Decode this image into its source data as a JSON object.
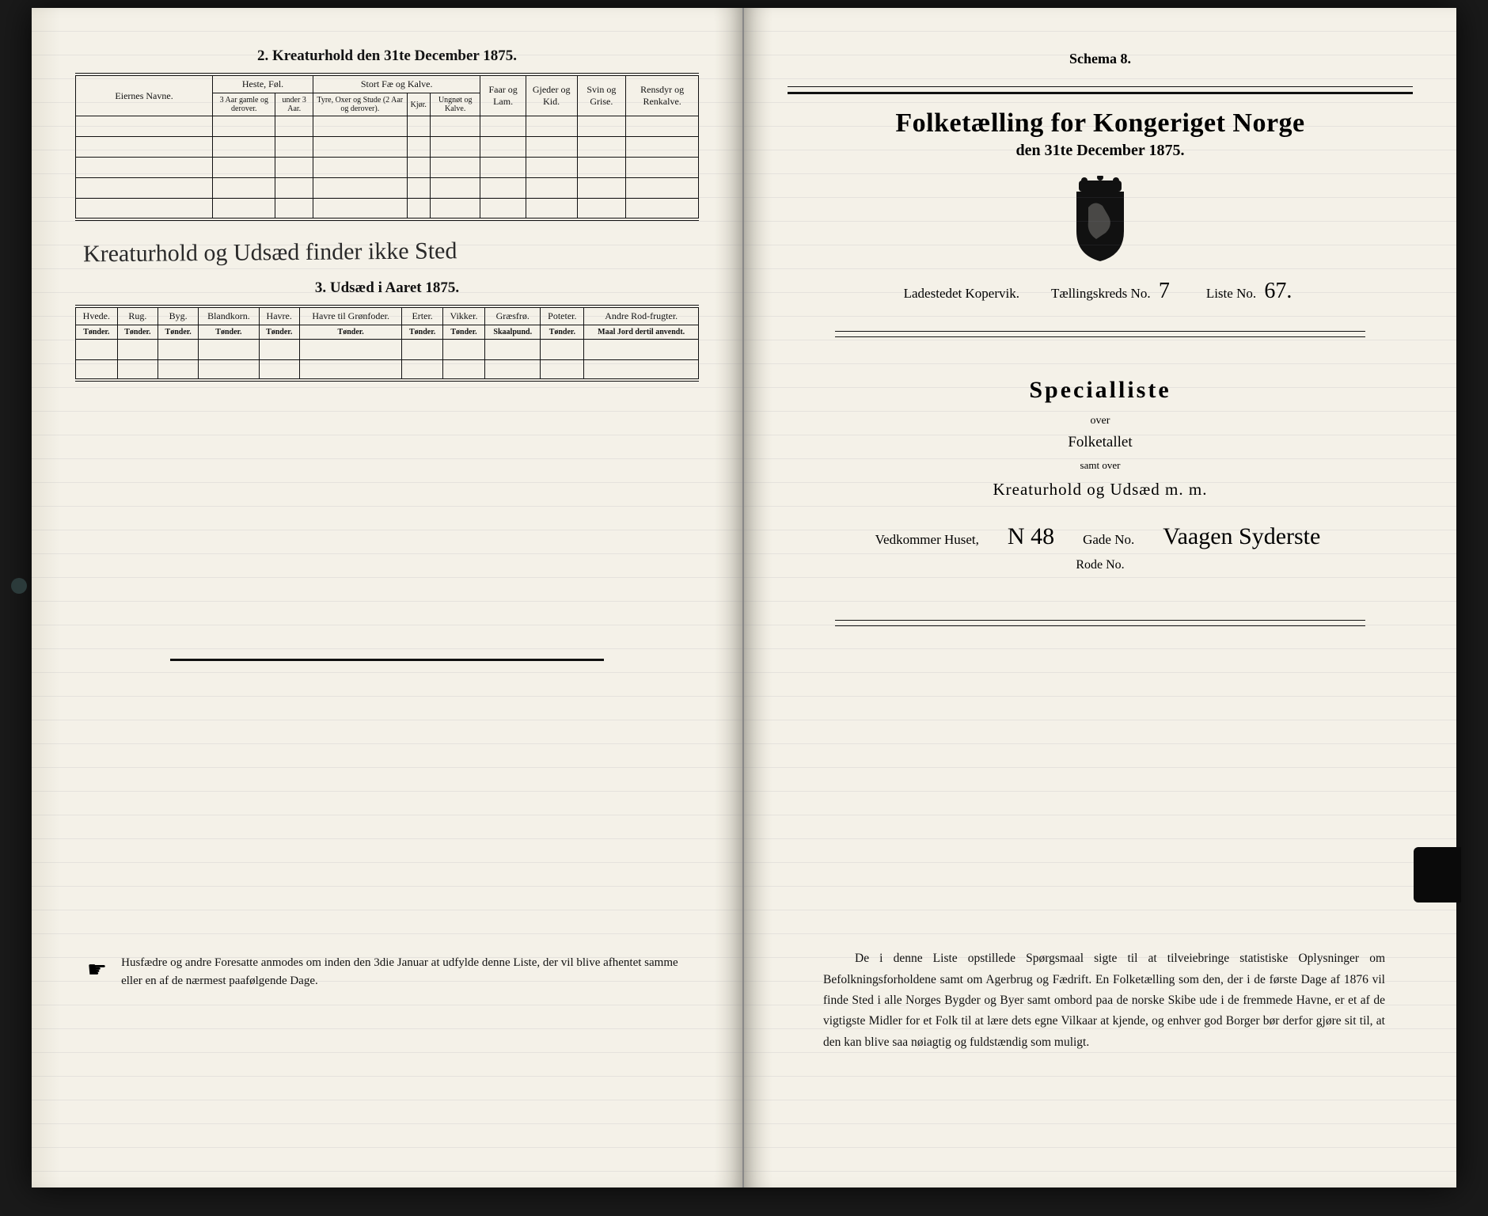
{
  "left": {
    "section2_title": "2.  Kreaturhold den 31te December 1875.",
    "table2": {
      "col_owner": "Eiernes Navne.",
      "grp_horses": "Heste, Føl.",
      "grp_cattle": "Stort Fæ og Kalve.",
      "col_sheep": "Faar og Lam.",
      "col_goats": "Gjeder og Kid.",
      "col_pigs": "Svin og Grise.",
      "col_reindeer": "Rensdyr og Renkalve.",
      "sub_h1": "3 Aar gamle og derover.",
      "sub_h2": "under 3 Aar.",
      "sub_c1": "Tyre, Oxer og Stude (2 Aar og derover).",
      "sub_c2": "Kjør.",
      "sub_c3": "Ungnøt og Kalve."
    },
    "handwritten_note": "Kreaturhold og Udsæd finder ikke Sted",
    "section3_title": "3.  Udsæd i Aaret 1875.",
    "table3": {
      "cols": [
        "Hvede.",
        "Rug.",
        "Byg.",
        "Blandkorn.",
        "Havre.",
        "Havre til Grønfoder.",
        "Erter.",
        "Vikker.",
        "Græsfrø.",
        "Poteter.",
        "Andre Rod-frugter."
      ],
      "units": [
        "Tønder.",
        "Tønder.",
        "Tønder.",
        "Tønder.",
        "Tønder.",
        "Tønder.",
        "Tønder.",
        "Tønder.",
        "Skaalpund.",
        "Tønder.",
        "Maal Jord dertil anvendt."
      ]
    },
    "footer": "Husfædre og andre Foresatte anmodes om inden den 3die Januar at udfylde denne Liste, der vil blive afhentet samme eller en af de nærmest paafølgende Dage."
  },
  "right": {
    "schema": "Schema 8.",
    "title": "Folketælling for Kongeriget Norge",
    "date": "den 31te December 1875.",
    "place_label": "Ladestedet Kopervik.",
    "district_label": "Tællingskreds No.",
    "district_value": "7",
    "list_label": "Liste No.",
    "list_value": "67.",
    "special": "Specialliste",
    "over": "over",
    "folketallet": "Folketallet",
    "samt": "samt over",
    "kreatur": "Kreaturhold og Udsæd m. m.",
    "house_label": "Vedkommer Huset,",
    "house_value": "N 48",
    "street_label": "Gade No.",
    "street_value": "Vaagen Syderste",
    "rode": "Rode No.",
    "body": "De i denne Liste opstillede Spørgsmaal sigte til at tilveiebringe statistiske Oplysninger om Befolkningsforholdene samt om Agerbrug og Fædrift. En Folketælling som den, der i de første Dage af 1876 vil finde Sted i alle Norges Bygder og Byer samt ombord paa de norske Skibe ude i de fremmede Havne, er et af de vigtigste Midler for et Folk til at lære dets egne Vilkaar at kjende, og enhver god Borger bør derfor gjøre sit til, at den kan blive saa nøiagtig og fuldstændig som muligt."
  },
  "colors": {
    "paper": "#f4f1e8",
    "ink": "#111111",
    "background": "#0a0a0a"
  }
}
